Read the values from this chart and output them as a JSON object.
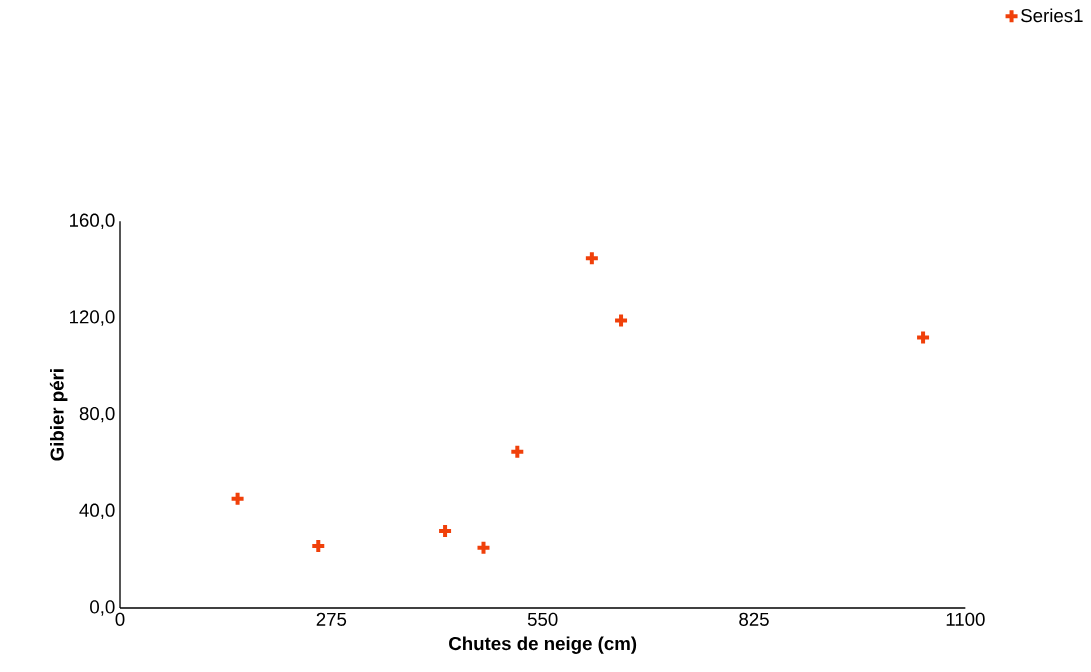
{
  "chart_data": {
    "type": "scatter",
    "xlabel": "Chutes de neige (cm)",
    "ylabel": "Gibier péri",
    "x": [
      153,
      258,
      423,
      473,
      517,
      614,
      652,
      1045
    ],
    "series": [
      {
        "name": "Series1",
        "color": "#f0400a",
        "values": [
          45.2,
          25.7,
          31.9,
          24.9,
          64.7,
          144.7,
          119.0,
          111.9
        ]
      }
    ],
    "xlim": [
      0,
      1100
    ],
    "ylim": [
      0,
      160
    ],
    "xticks": [
      0,
      275,
      550,
      825,
      1100
    ],
    "yticks": [
      {
        "value": 0,
        "label": "0,0"
      },
      {
        "value": 40,
        "label": "40,0"
      },
      {
        "value": 80,
        "label": "80,0"
      },
      {
        "value": 120,
        "label": "120,0"
      },
      {
        "value": 160,
        "label": "160,0"
      }
    ],
    "grid": false,
    "legend": "top right",
    "marker": "cross"
  }
}
